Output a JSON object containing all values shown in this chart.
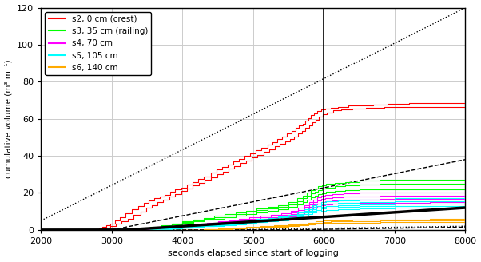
{
  "xlim": [
    2000,
    8000
  ],
  "ylim": [
    0,
    120
  ],
  "xticks": [
    2000,
    3000,
    4000,
    5000,
    6000,
    7000,
    8000
  ],
  "yticks": [
    0,
    20,
    40,
    60,
    80,
    100,
    120
  ],
  "xlabel": "seconds elapsed since start of logging",
  "ylabel": "cumulative volume (m³ m⁻¹)",
  "vertical_line_x": 6000,
  "legend_labels": [
    "s2, 0 cm (crest)",
    "s3, 35 cm (railing)",
    "s4, 70 cm",
    "s5, 105 cm",
    "s6, 140 cm"
  ],
  "legend_colors": [
    "#ff0000",
    "#00ff00",
    "#ff00ff",
    "#00ffff",
    "#ffaa00"
  ],
  "background_color": "#ffffff",
  "axes_facecolor": "#ffffff",
  "grid_color": "#cccccc",
  "text_color": "#000000",
  "figsize": [
    6.02,
    3.28
  ],
  "dpi": 100
}
